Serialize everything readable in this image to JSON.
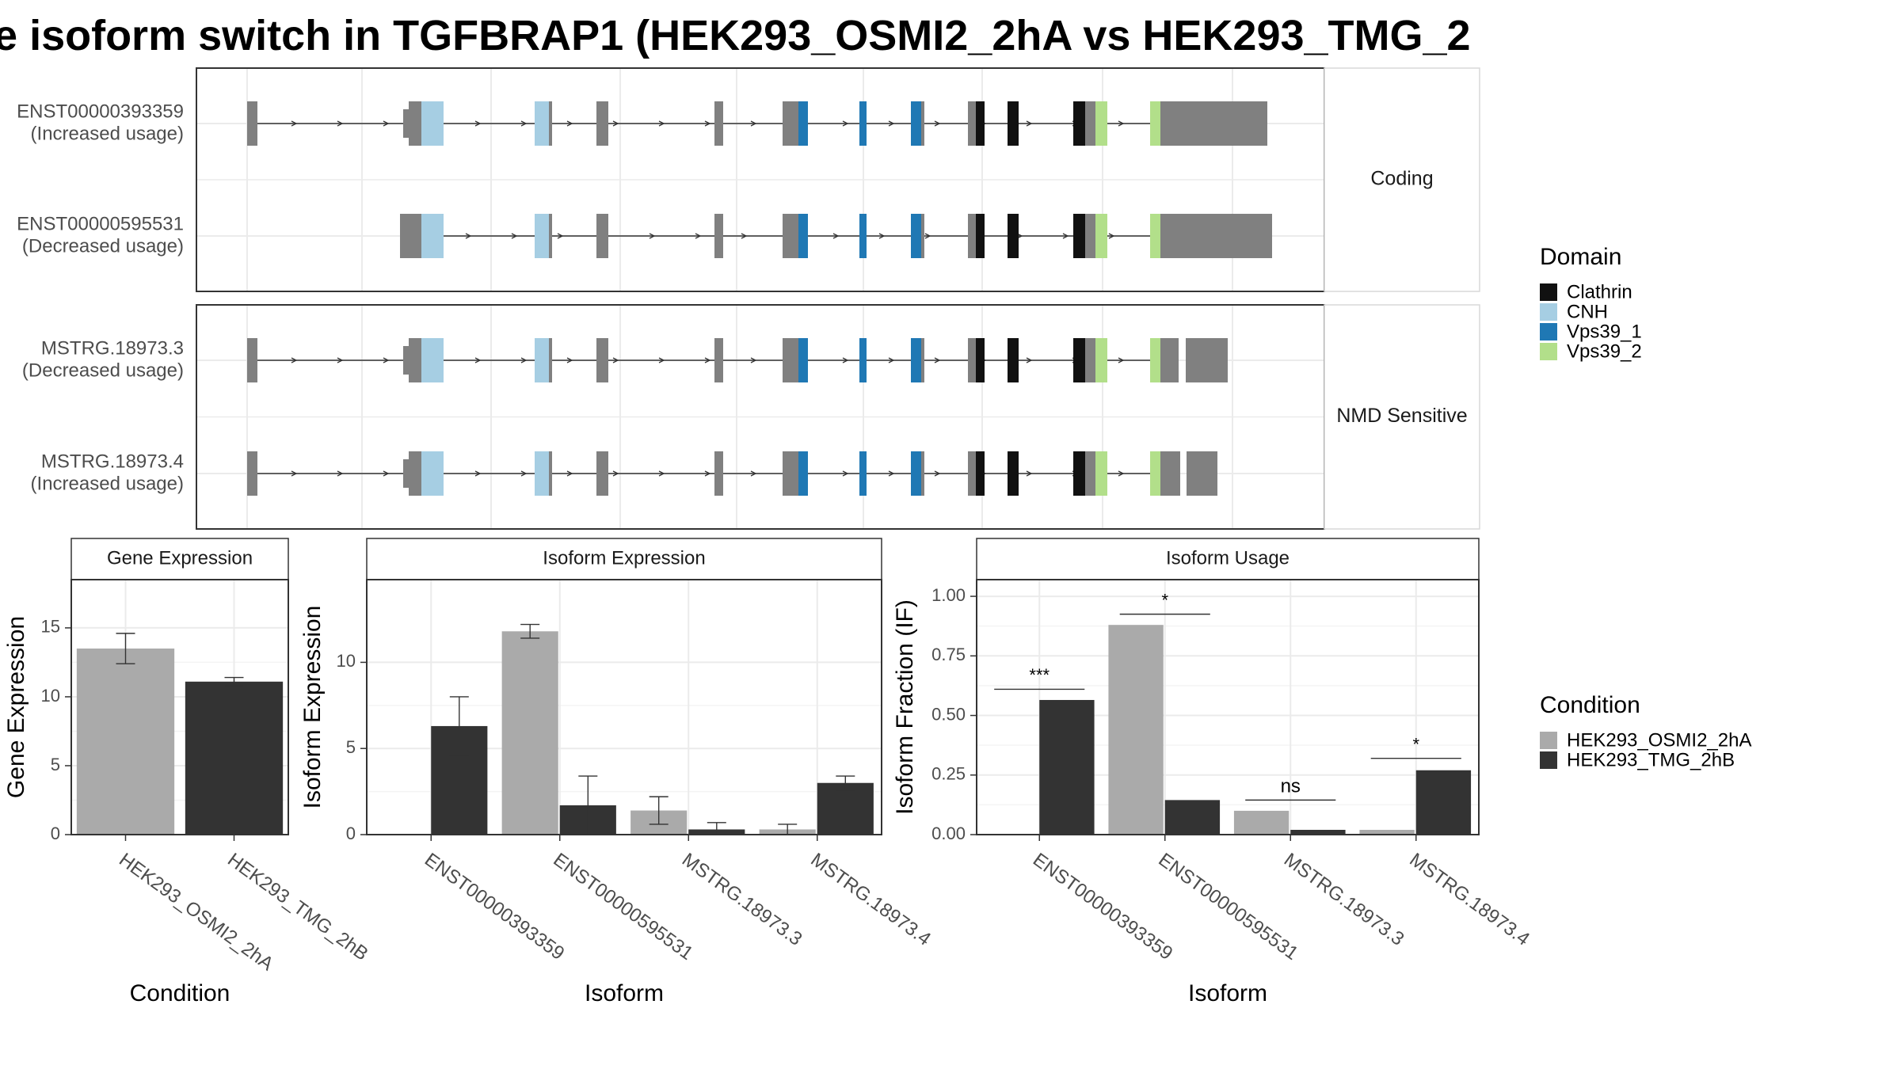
{
  "title": "isoform switch in TGFBRAP1 (HEK293_OSMI2_2hA vs HEK293_TMG_2",
  "title_prefix_glyph": "e",
  "colors": {
    "exon": "#808080",
    "Clathrin": "#111111",
    "CNH": "#a6cee3",
    "Vps39_1": "#1f78b4",
    "Vps39_2": "#b2df8a",
    "cond_A": "#aaaaaa",
    "cond_B": "#333333",
    "grid": "#ebebeb",
    "panel_border": "#333333"
  },
  "structure": {
    "facets": [
      {
        "label": "Coding",
        "isoforms": [
          {
            "id": "ENST00000393359",
            "usage": "(Increased usage)"
          },
          {
            "id": "ENST00000595531",
            "usage": "(Decreased usage)"
          }
        ]
      },
      {
        "label": "NMD Sensitive",
        "isoforms": [
          {
            "id": "MSTRG.18973.3",
            "usage": "(Decreased usage)"
          },
          {
            "id": "MSTRG.18973.4",
            "usage": "(Increased usage)"
          }
        ]
      }
    ]
  },
  "legend_domain": {
    "title": "Domain",
    "items": [
      "Clathrin",
      "CNH",
      "Vps39_1",
      "Vps39_2"
    ]
  },
  "legend_condition": {
    "title": "Condition",
    "items": [
      "HEK293_OSMI2_2hA",
      "HEK293_TMG_2hB"
    ]
  },
  "chart_data": [
    {
      "type": "bar",
      "title": "Gene Expression",
      "xlabel": "Condition",
      "ylabel": "Gene Expression",
      "ylim": [
        0,
        18.5
      ],
      "yticks": [
        0,
        5,
        10,
        15
      ],
      "categories": [
        "HEK293_OSMI2_2hA",
        "HEK293_TMG_2hB"
      ],
      "values": [
        13.5,
        11.1
      ],
      "errors": [
        [
          12.4,
          14.6
        ],
        [
          10.8,
          11.4
        ]
      ]
    },
    {
      "type": "bar",
      "title": "Isoform Expression",
      "xlabel": "Isoform",
      "ylabel": "Isoform Expression",
      "ylim": [
        0,
        14.8
      ],
      "yticks": [
        0,
        5,
        10
      ],
      "categories": [
        "ENST00000393359",
        "ENST00000595531",
        "MSTRG.18973.3",
        "MSTRG.18973.4"
      ],
      "series": [
        {
          "name": "HEK293_OSMI2_2hA",
          "values": [
            0,
            11.8,
            1.4,
            0.3
          ],
          "errors": [
            [
              0,
              0
            ],
            [
              11.4,
              12.2
            ],
            [
              0.6,
              2.2
            ],
            [
              0.0,
              0.6
            ]
          ]
        },
        {
          "name": "HEK293_TMG_2hB",
          "values": [
            6.3,
            1.7,
            0.3,
            3.0
          ],
          "errors": [
            [
              4.6,
              8.0
            ],
            [
              0.0,
              3.4
            ],
            [
              0.0,
              0.7
            ],
            [
              2.6,
              3.4
            ]
          ]
        }
      ]
    },
    {
      "type": "bar",
      "title": "Isoform Usage",
      "xlabel": "Isoform",
      "ylabel": "Isoform Fraction (IF)",
      "ylim": [
        0,
        1.07
      ],
      "yticks": [
        0.0,
        0.25,
        0.5,
        0.75,
        1.0
      ],
      "ytick_labels": [
        "0.00",
        "0.25",
        "0.50",
        "0.75",
        "1.00"
      ],
      "categories": [
        "ENST00000393359",
        "ENST00000595531",
        "MSTRG.18973.3",
        "MSTRG.18973.4"
      ],
      "series": [
        {
          "name": "HEK293_OSMI2_2hA",
          "values": [
            0.0,
            0.88,
            0.1,
            0.02
          ]
        },
        {
          "name": "HEK293_TMG_2hB",
          "values": [
            0.565,
            0.145,
            0.02,
            0.27
          ]
        }
      ],
      "significance": [
        {
          "label": "***",
          "y": 0.61
        },
        {
          "label": "*",
          "y": 0.925
        },
        {
          "label": "ns",
          "y": 0.145
        },
        {
          "label": "*",
          "y": 0.32
        }
      ]
    }
  ]
}
